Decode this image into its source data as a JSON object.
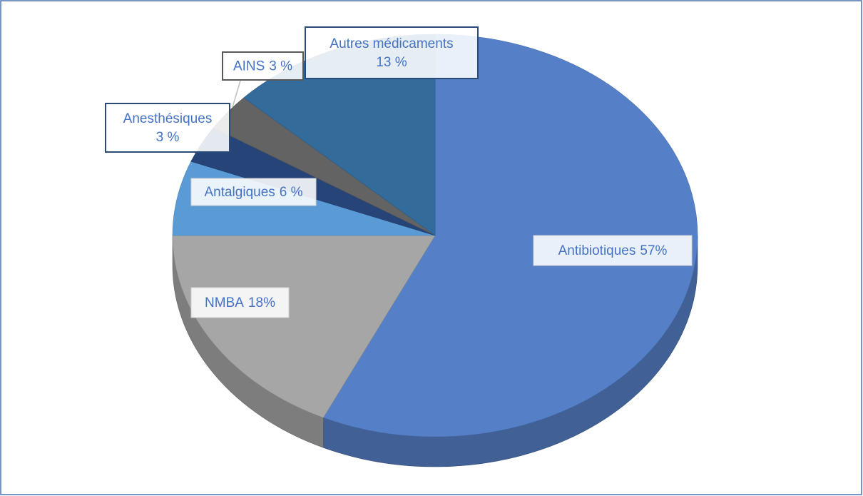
{
  "chart_data": {
    "type": "pie",
    "categories": [
      "Antibiotiques",
      "NMBA",
      "Antalgiques",
      "Anesthésiques",
      "AINS",
      "Autres médicaments"
    ],
    "values": [
      57,
      18,
      6,
      3,
      3,
      13
    ],
    "value_labels": [
      "57%",
      "18%",
      "6 %",
      "3 %",
      "3 %",
      "13 %"
    ],
    "colors": [
      "#5580c8",
      "#a6a6a6",
      "#5b9bd5",
      "#264478",
      "#636363",
      "#336b9b"
    ]
  }
}
